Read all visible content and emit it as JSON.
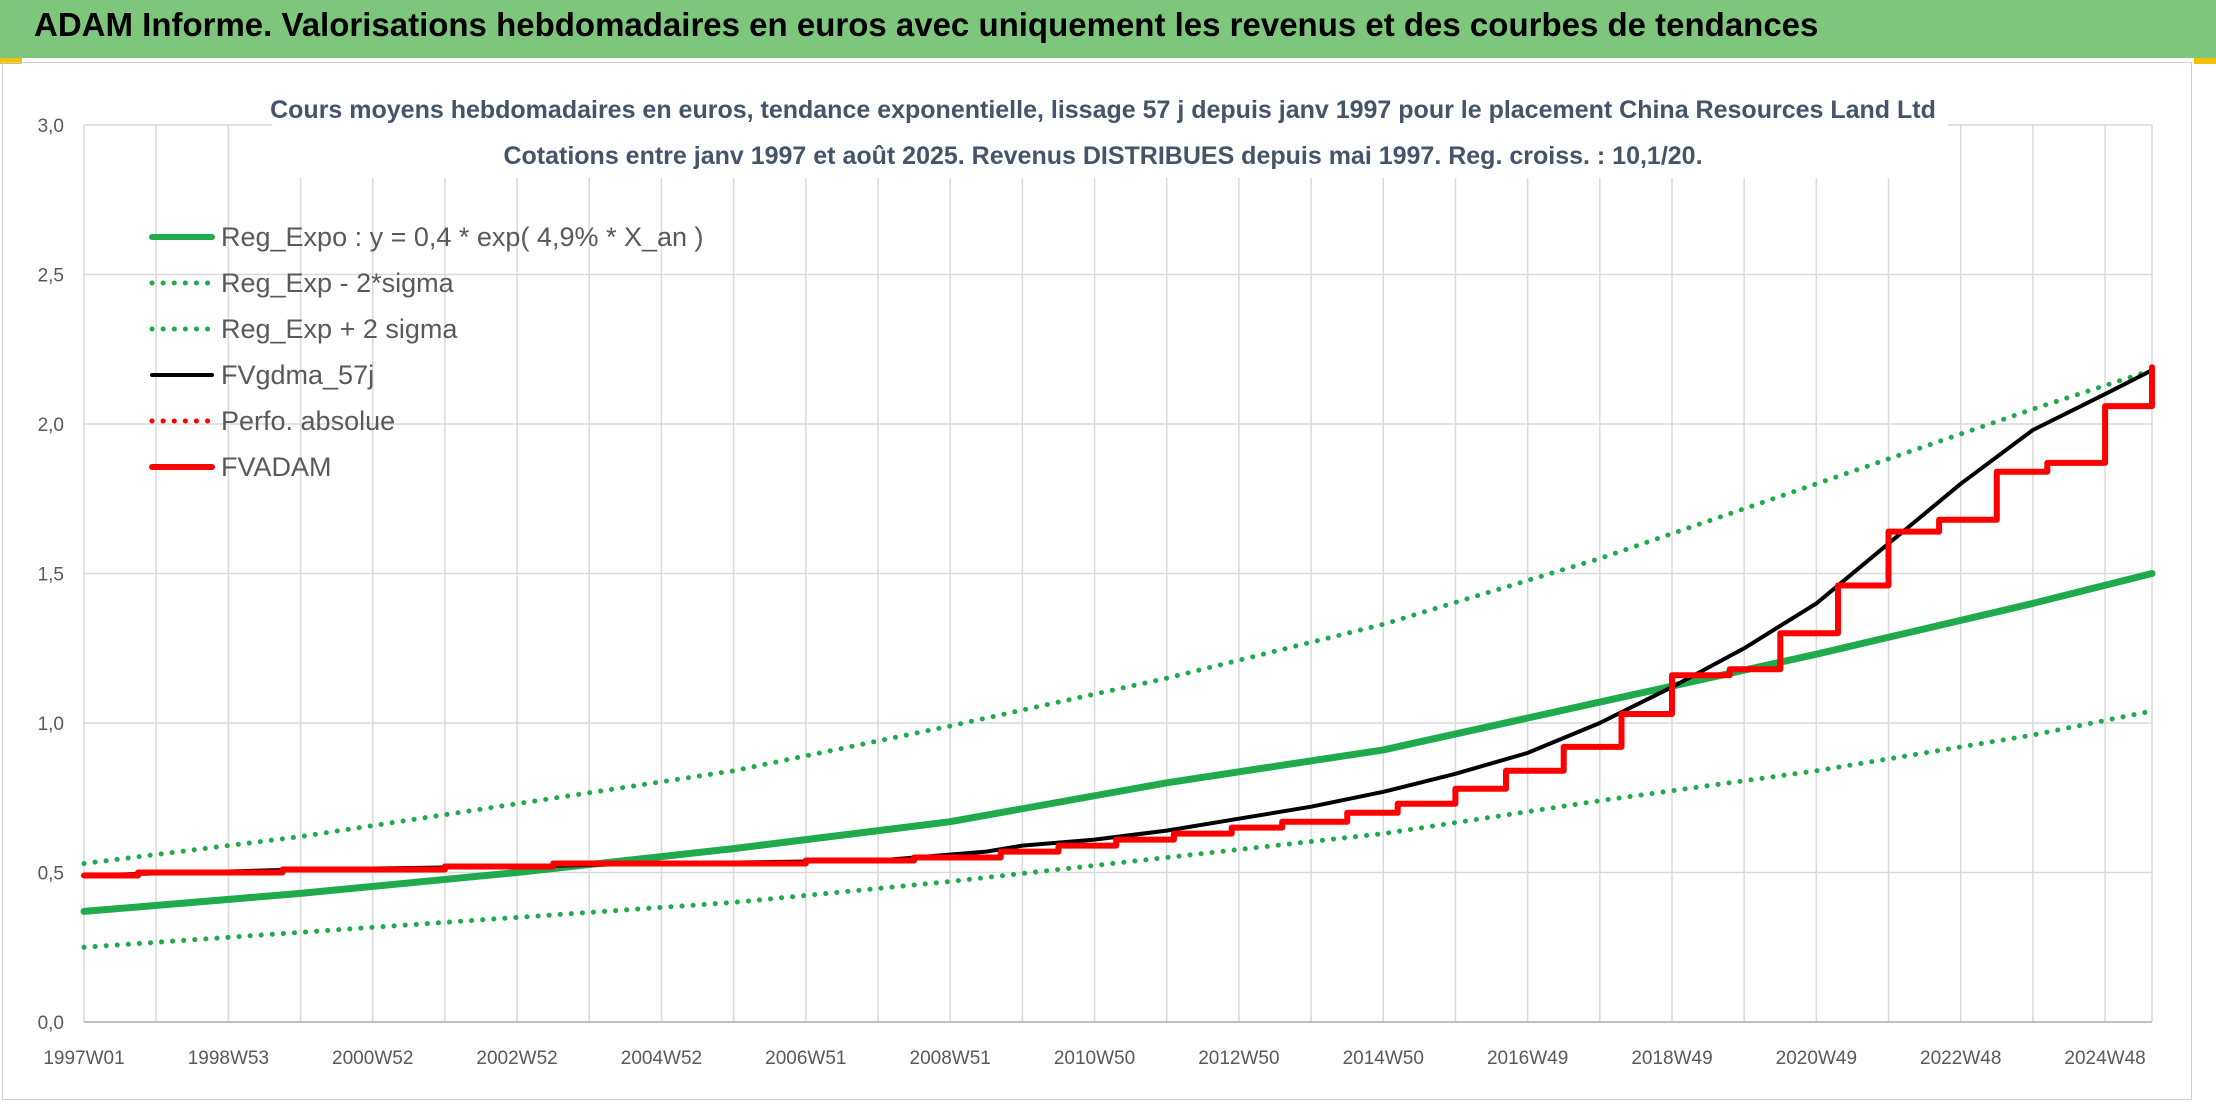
{
  "header": {
    "title": "ADAM Informe. Valorisations hebdomadaires en euros avec uniquement les revenus et des courbes de tendances"
  },
  "colors": {
    "banner": "#7dc67c",
    "green": "#1faa4b",
    "black": "#000000",
    "red": "#ff0000",
    "grid": "#d9d9d9",
    "axis_text": "#595959",
    "title_text": "#44546a"
  },
  "chart_data": {
    "type": "line",
    "title": "Cours moyens hebdomadaires en euros, tendance exponentielle, lissage 57 j depuis janv 1997 pour le placement China Resources Land Ltd",
    "subtitle": "Cotations entre janv 1997 et août 2025. Revenus DISTRIBUES depuis mai 1997. Reg. croiss. : 10,1/20.",
    "xlabel": "",
    "ylabel": "",
    "ylim": [
      0,
      3
    ],
    "yticks": [
      "0,0",
      "0,5",
      "1,0",
      "1,5",
      "2,0",
      "2,5",
      "3,0"
    ],
    "xlim": [
      1997.0,
      2025.65
    ],
    "xtick_labels": [
      "1997W01",
      "1998W53",
      "2000W52",
      "2002W52",
      "2004W52",
      "2006W51",
      "2008W51",
      "2010W50",
      "2012W50",
      "2014W50",
      "2016W49",
      "2018W49",
      "2020W49",
      "2022W48",
      "2024W48"
    ],
    "grid": true,
    "legend_position": "top-left",
    "series": [
      {
        "name": "Reg_Expo : y = 0,4 * exp( 4,9% *  X_an )",
        "style": "solid-thick",
        "color": "#1faa4b",
        "x": [
          1997,
          2000,
          2003,
          2006,
          2009,
          2012,
          2015,
          2018,
          2021,
          2024,
          2025.65
        ],
        "y": [
          0.37,
          0.43,
          0.5,
          0.58,
          0.67,
          0.8,
          0.91,
          1.07,
          1.23,
          1.4,
          1.5
        ]
      },
      {
        "name": "Reg_Exp - 2*sigma",
        "style": "dotted",
        "color": "#1faa4b",
        "x": [
          1997,
          2000,
          2003,
          2006,
          2009,
          2012,
          2015,
          2018,
          2021,
          2024,
          2025.65
        ],
        "y": [
          0.25,
          0.3,
          0.35,
          0.4,
          0.47,
          0.55,
          0.63,
          0.74,
          0.84,
          0.96,
          1.04
        ]
      },
      {
        "name": "Reg_Exp + 2 sigma",
        "style": "dotted",
        "color": "#1faa4b",
        "x": [
          1997,
          2000,
          2003,
          2006,
          2009,
          2012,
          2015,
          2018,
          2021,
          2024,
          2025.65
        ],
        "y": [
          0.53,
          0.62,
          0.73,
          0.84,
          0.99,
          1.15,
          1.33,
          1.55,
          1.8,
          2.05,
          2.18
        ]
      },
      {
        "name": "FVgdma_57j",
        "style": "solid",
        "color": "#000000",
        "x": [
          1997,
          2000,
          2003,
          2005,
          2008,
          2009.5,
          2010,
          2011,
          2012,
          2013,
          2014,
          2015,
          2016,
          2017,
          2018,
          2019,
          2020,
          2021,
          2022,
          2023,
          2024,
          2025,
          2025.65
        ],
        "y": [
          0.49,
          0.51,
          0.52,
          0.53,
          0.54,
          0.57,
          0.59,
          0.61,
          0.64,
          0.68,
          0.72,
          0.77,
          0.83,
          0.9,
          1.0,
          1.12,
          1.25,
          1.4,
          1.6,
          1.8,
          1.98,
          2.1,
          2.18
        ]
      },
      {
        "name": "Perfo. absolue",
        "style": "dotted",
        "color": "#ff0000",
        "x": [],
        "y": []
      },
      {
        "name": "FVADAM",
        "style": "step",
        "color": "#ff0000",
        "x": [
          1997.0,
          1997.75,
          1999.75,
          2002.0,
          2003.5,
          2005.5,
          2007.0,
          2008.5,
          2009.7,
          2010.5,
          2011.3,
          2012.1,
          2012.9,
          2013.6,
          2014.5,
          2015.2,
          2016.0,
          2016.7,
          2017.5,
          2018.3,
          2019.0,
          2019.8,
          2020.5,
          2021.3,
          2022.0,
          2022.7,
          2023.5,
          2024.2,
          2025.0,
          2025.65
        ],
        "y": [
          0.49,
          0.5,
          0.51,
          0.52,
          0.53,
          0.53,
          0.54,
          0.55,
          0.57,
          0.59,
          0.61,
          0.63,
          0.65,
          0.67,
          0.7,
          0.73,
          0.78,
          0.84,
          0.92,
          1.03,
          1.16,
          1.18,
          1.3,
          1.46,
          1.64,
          1.68,
          1.84,
          1.87,
          2.06,
          2.19
        ]
      }
    ]
  }
}
